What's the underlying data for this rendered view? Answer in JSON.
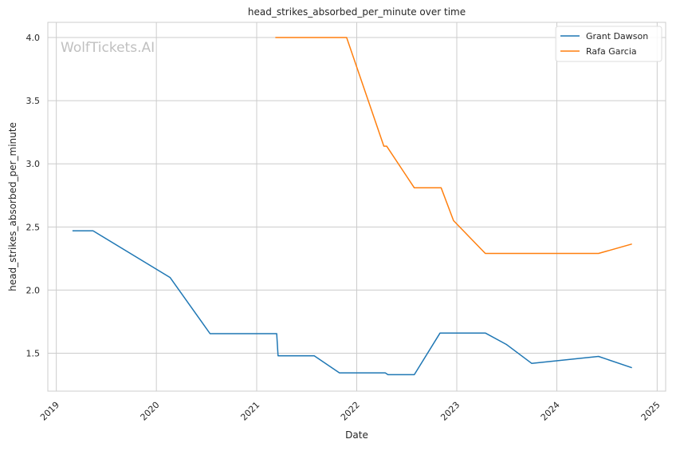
{
  "chart_data": {
    "type": "line",
    "title": "head_strikes_absorbed_per_minute over time",
    "xlabel": "Date",
    "ylabel": "head_strikes_absorbed_per_minute",
    "watermark": "WolfTickets.AI",
    "x_ticks": [
      "2019",
      "2020",
      "2021",
      "2022",
      "2023",
      "2024",
      "2025"
    ],
    "y_ticks": [
      "1.5",
      "2.0",
      "2.5",
      "3.0",
      "3.5",
      "4.0"
    ],
    "xlim": [
      "2018-12-01",
      "2025-02-01"
    ],
    "ylim": [
      1.2,
      4.12
    ],
    "grid": true,
    "legend_position": "top-right",
    "series": [
      {
        "name": "Grant Dawson",
        "color": "#1f77b4",
        "points": [
          {
            "x": "2019-03-01",
            "y": 2.47
          },
          {
            "x": "2019-05-15",
            "y": 2.47
          },
          {
            "x": "2020-02-20",
            "y": 2.1
          },
          {
            "x": "2020-07-15",
            "y": 1.655
          },
          {
            "x": "2021-03-15",
            "y": 1.655
          },
          {
            "x": "2021-03-20",
            "y": 1.48
          },
          {
            "x": "2021-07-30",
            "y": 1.48
          },
          {
            "x": "2021-10-30",
            "y": 1.345
          },
          {
            "x": "2022-04-15",
            "y": 1.345
          },
          {
            "x": "2022-04-25",
            "y": 1.33
          },
          {
            "x": "2022-07-30",
            "y": 1.33
          },
          {
            "x": "2022-11-01",
            "y": 1.66
          },
          {
            "x": "2023-04-15",
            "y": 1.66
          },
          {
            "x": "2023-07-01",
            "y": 1.57
          },
          {
            "x": "2023-10-01",
            "y": 1.42
          },
          {
            "x": "2024-06-01",
            "y": 1.475
          },
          {
            "x": "2024-10-01",
            "y": 1.385
          }
        ]
      },
      {
        "name": "Rafa Garcia",
        "color": "#ff7f0e",
        "points": [
          {
            "x": "2021-03-10",
            "y": 4.0
          },
          {
            "x": "2021-11-25",
            "y": 4.0
          },
          {
            "x": "2022-04-10",
            "y": 3.14
          },
          {
            "x": "2022-04-20",
            "y": 3.14
          },
          {
            "x": "2022-07-30",
            "y": 2.81
          },
          {
            "x": "2022-11-05",
            "y": 2.81
          },
          {
            "x": "2022-12-20",
            "y": 2.55
          },
          {
            "x": "2023-04-15",
            "y": 2.29
          },
          {
            "x": "2024-06-01",
            "y": 2.29
          },
          {
            "x": "2024-10-01",
            "y": 2.365
          }
        ]
      }
    ]
  }
}
